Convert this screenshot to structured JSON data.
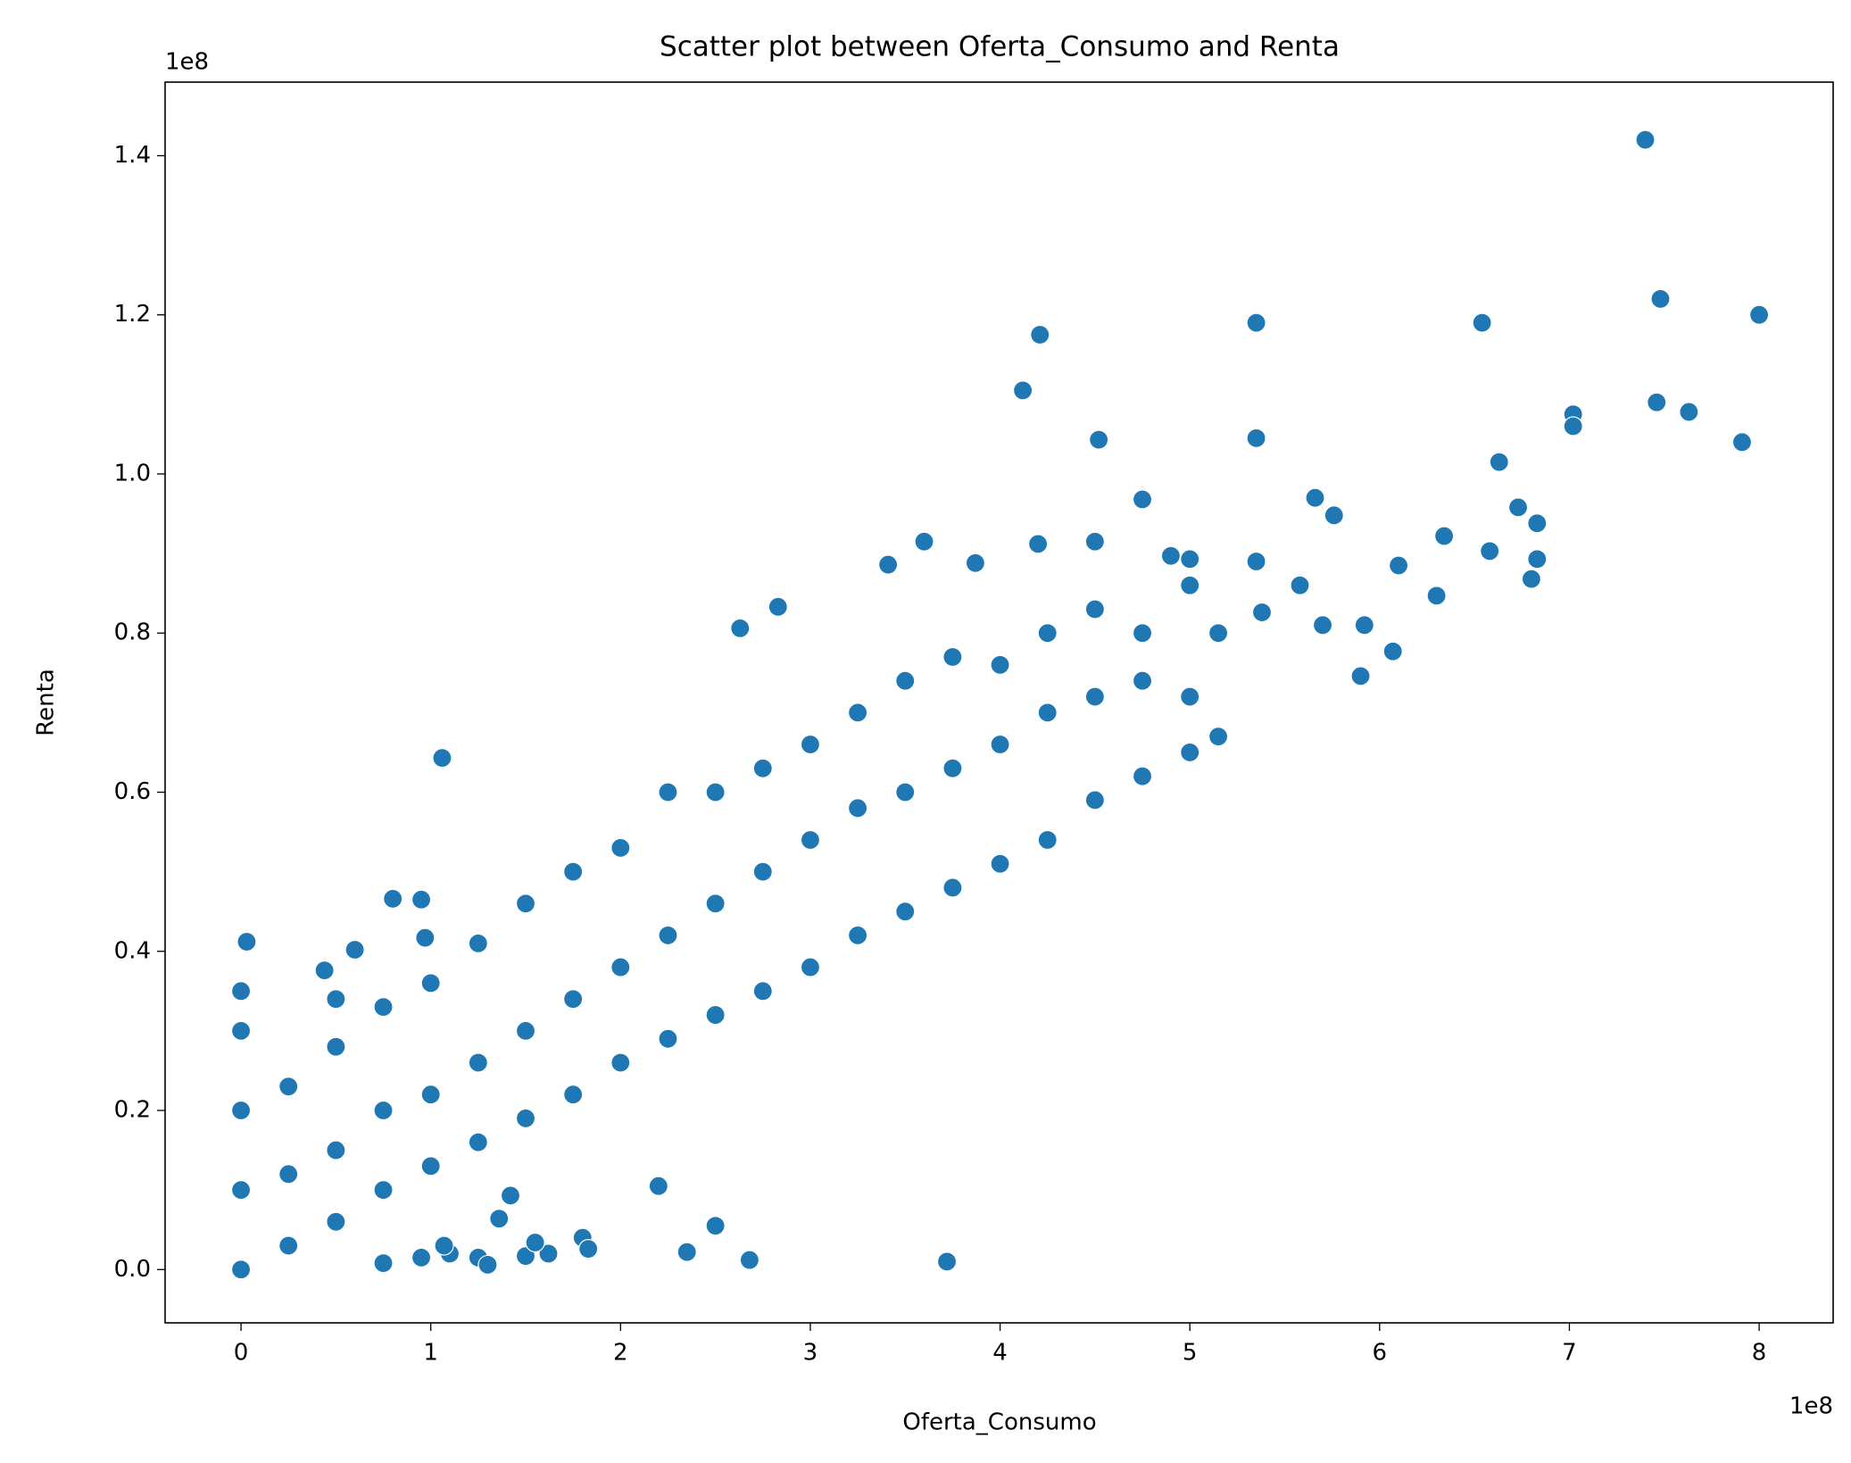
{
  "chart_data": {
    "type": "scatter",
    "title": "Scatter plot between Oferta_Consumo and Renta",
    "x_label": "Oferta_Consumo",
    "y_label": "Renta",
    "x_offset_label": "1e8",
    "y_offset_label": "1e8",
    "color": "#1f77b4",
    "xlim": [
      -0.4,
      8.39
    ],
    "ylim": [
      -0.067,
      1.4925
    ],
    "xticks": [
      0,
      1,
      2,
      3,
      4,
      5,
      6,
      7,
      8
    ],
    "yticks": [
      {
        "value": 0,
        "label": "0.0"
      },
      0.2,
      0.4,
      0.6,
      0.8,
      {
        "value": 1,
        "label": "1.0"
      },
      1.2,
      1.4
    ],
    "x": [
      7.4,
      7.48,
      8.0,
      5.35,
      6.54,
      4.21,
      4.12,
      7.02,
      7.46,
      7.63,
      7.91,
      5.35,
      4.52,
      7.02,
      6.63,
      5.66,
      4.75,
      5.76,
      6.73,
      6.83,
      6.34,
      3.6,
      4.2,
      4.5,
      5.35,
      6.1,
      6.58,
      6.83,
      6.8,
      6.3,
      5.58,
      5.7,
      5.92,
      6.07,
      5.9,
      4.9,
      5.0,
      5.38,
      3.87,
      3.41,
      2.83,
      2.63,
      1.06,
      0.03,
      0.6,
      0.8,
      0.95,
      0.97,
      0.44,
      2.2,
      2.5,
      2.35,
      2.68,
      3.72,
      1.42,
      1.36,
      1.8,
      1.83,
      1.62,
      1.5,
      1.55,
      1.1,
      1.25,
      0.75,
      1.3,
      0.95,
      1.07,
      0,
      0,
      0,
      0,
      0,
      0.25,
      0.25,
      0.25,
      0.5,
      0.5,
      0.5,
      0.5,
      0.75,
      0.75,
      0.75,
      1.0,
      1.0,
      1.0,
      1.25,
      1.25,
      1.25,
      1.5,
      1.5,
      1.5,
      1.75,
      1.75,
      1.75,
      2.0,
      2.0,
      2.0,
      2.25,
      2.25,
      2.25,
      2.5,
      2.5,
      2.5,
      2.75,
      2.75,
      2.75,
      3.0,
      3.0,
      3.0,
      3.25,
      3.25,
      3.25,
      3.5,
      3.5,
      3.5,
      3.75,
      3.75,
      3.75,
      4.0,
      4.0,
      4.0,
      4.25,
      4.25,
      4.25,
      4.5,
      4.5,
      4.5,
      4.75,
      4.75,
      4.75,
      5.0,
      5.0,
      5.0,
      5.15,
      5.15
    ],
    "values": [
      1.42,
      1.22,
      1.2,
      1.19,
      1.19,
      1.175,
      1.105,
      1.075,
      1.09,
      1.078,
      1.04,
      1.045,
      1.043,
      1.06,
      1.015,
      0.97,
      0.968,
      0.948,
      0.958,
      0.938,
      0.922,
      0.915,
      0.912,
      0.915,
      0.89,
      0.885,
      0.903,
      0.893,
      0.868,
      0.847,
      0.86,
      0.81,
      0.81,
      0.777,
      0.746,
      0.897,
      0.893,
      0.826,
      0.888,
      0.886,
      0.833,
      0.806,
      0.643,
      0.412,
      0.402,
      0.466,
      0.465,
      0.417,
      0.376,
      0.105,
      0.055,
      0.022,
      0.012,
      0.01,
      0.093,
      0.064,
      0.04,
      0.026,
      0.02,
      0.017,
      0.034,
      0.02,
      0.015,
      0.008,
      0.006,
      0.015,
      0.03,
      0.0,
      0.1,
      0.2,
      0.3,
      0.35,
      0.03,
      0.12,
      0.23,
      0.06,
      0.15,
      0.28,
      0.34,
      0.1,
      0.2,
      0.33,
      0.13,
      0.22,
      0.36,
      0.16,
      0.26,
      0.41,
      0.19,
      0.3,
      0.46,
      0.22,
      0.34,
      0.5,
      0.26,
      0.38,
      0.53,
      0.29,
      0.42,
      0.6,
      0.32,
      0.46,
      0.6,
      0.35,
      0.5,
      0.63,
      0.38,
      0.54,
      0.66,
      0.42,
      0.58,
      0.7,
      0.45,
      0.6,
      0.74,
      0.48,
      0.63,
      0.77,
      0.51,
      0.66,
      0.76,
      0.54,
      0.7,
      0.8,
      0.59,
      0.72,
      0.83,
      0.62,
      0.74,
      0.8,
      0.65,
      0.72,
      0.86,
      0.67,
      0.8
    ]
  }
}
